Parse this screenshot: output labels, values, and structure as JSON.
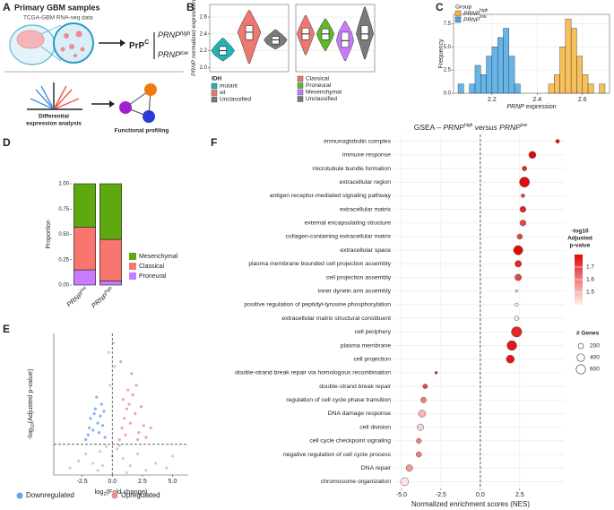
{
  "panel_labels": [
    "A",
    "B",
    "C",
    "D",
    "E",
    "F"
  ],
  "diagram": {
    "title": "Primary GBM samples",
    "subtitle": "TCGA-GBM RNA-seq data",
    "protein": "PrP",
    "protein_sup": "C",
    "gene": "PRNP",
    "high": "high",
    "low": "low",
    "step1": [
      "Differential",
      "expression analysis"
    ],
    "step2": "Functional profiling"
  },
  "chart_data": [
    {
      "type": "violin",
      "ylabel": [
        "PRNP",
        " normalized expression"
      ],
      "legend_title": "IDH",
      "categories": [
        "mutant",
        "wt",
        "Unclassified"
      ],
      "colors": [
        "#1fb5b5",
        "#f07670",
        "#7a7a7a"
      ],
      "min": [
        2.08,
        2.05,
        2.22
      ],
      "q1": [
        2.15,
        2.33,
        2.28
      ],
      "median": [
        2.2,
        2.42,
        2.33
      ],
      "q3": [
        2.25,
        2.5,
        2.37
      ],
      "max": [
        2.35,
        2.68,
        2.45
      ],
      "ylim": [
        1.95,
        2.75
      ],
      "yticks": [
        {
          "value": 2,
          "label": "2.0"
        },
        2.2,
        2.4,
        2.6
      ],
      "grid": true
    },
    {
      "type": "violin",
      "categories": [
        "Classical",
        "Proneural",
        "Mesenchymal",
        "Unclassified"
      ],
      "colors": [
        "#f07670",
        "#5fb82a",
        "#c77cff",
        "#7a7a7a"
      ],
      "min": [
        2.15,
        2.2,
        2.08,
        2.1
      ],
      "q1": [
        2.33,
        2.33,
        2.24,
        2.33
      ],
      "median": [
        2.4,
        2.4,
        2.32,
        2.4
      ],
      "q3": [
        2.47,
        2.46,
        2.42,
        2.5
      ],
      "max": [
        2.62,
        2.58,
        2.55,
        2.72
      ],
      "ylim": [
        1.95,
        2.75
      ],
      "grid": true
    },
    {
      "type": "histogram",
      "xlabel": [
        "PRNP",
        " expression"
      ],
      "ylabel": "Frequency",
      "legend_title": "Group",
      "bins": [
        2.05,
        2.075,
        2.1,
        2.125,
        2.15,
        2.175,
        2.2,
        2.225,
        2.25,
        2.275,
        2.3,
        2.325,
        2.35,
        2.375,
        2.4,
        2.425,
        2.45,
        2.475,
        2.5,
        2.525,
        2.55,
        2.575,
        2.6,
        2.625,
        2.65,
        2.675,
        2.7
      ],
      "series": [
        {
          "name": "PRNP",
          "name_sup": "high",
          "color": "#f7b53b",
          "values": [
            0,
            0,
            0,
            0,
            0,
            0,
            0,
            0,
            0,
            0,
            0,
            0,
            0,
            0,
            0,
            0,
            1,
            2,
            5,
            8,
            7,
            4,
            2,
            1,
            0,
            1
          ]
        },
        {
          "name": "PRNP",
          "name_sup": "low",
          "color": "#4aa8e0",
          "values": [
            1,
            0,
            1,
            3,
            2,
            4,
            5,
            6,
            7,
            4,
            1,
            0,
            0,
            0,
            0,
            0,
            0,
            0,
            0,
            0,
            0,
            0,
            0,
            0,
            0,
            0
          ]
        }
      ],
      "xlim": [
        2.03,
        2.72
      ],
      "xticks": [
        2.2,
        2.4,
        2.6
      ],
      "ylim": [
        0,
        8.5
      ],
      "yticks": [
        {
          "value": 0,
          "label": "0.0"
        },
        2.5,
        {
          "value": 5,
          "label": "5.0"
        },
        7.5
      ],
      "grid": true
    },
    {
      "type": "stacked_bar",
      "ylabel": "Proportion",
      "categories": [
        "PRNP",
        "PRNP"
      ],
      "category_sups": [
        "low",
        "high"
      ],
      "series": [
        {
          "name": "Mesenchymal",
          "color": "#5fa80f",
          "values": [
            0.43,
            0.55
          ]
        },
        {
          "name": "Classical",
          "color": "#f8766d",
          "values": [
            0.42,
            0.41
          ]
        },
        {
          "name": "Proneural",
          "color": "#c77cff",
          "values": [
            0.15,
            0.04
          ]
        }
      ],
      "ylim": [
        0,
        1
      ],
      "yticks": [
        {
          "value": 0,
          "label": "0.00"
        },
        {
          "value": 0.25,
          "label": "0.25"
        },
        {
          "value": 0.5,
          "label": "0.50"
        },
        {
          "value": 0.75,
          "label": "0.75"
        },
        {
          "value": 1,
          "label": "1.00"
        }
      ]
    },
    {
      "type": "volcano",
      "xlabel": [
        "log",
        "2",
        "(Fold change)"
      ],
      "ylabel": [
        "-log",
        "10",
        "(Adjusted p-value)"
      ],
      "series": [
        {
          "name": "Downregulated",
          "color": "#6c9ff0",
          "x": [
            -0.6,
            -0.8,
            -1.0,
            -1.2,
            -1.4,
            -1.6,
            -1.8,
            -2.0,
            -2.2,
            -0.9,
            -1.1,
            -1.5,
            -1.3,
            -0.7,
            -1.9
          ],
          "y": [
            1.6,
            2.1,
            2.5,
            2.2,
            2.8,
            1.9,
            2.4,
            1.7,
            1.5,
            3.0,
            1.8,
            2.6,
            3.3,
            2.7,
            2.0
          ]
        },
        {
          "name": "Upregulated",
          "color": "#f28b8b",
          "x": [
            0.6,
            0.8,
            1.0,
            1.2,
            1.4,
            1.5,
            1.7,
            1.9,
            2.0,
            2.2,
            2.4,
            2.6,
            1.1,
            1.6,
            0.9,
            2.8,
            3.2,
            1.3,
            0.7,
            2.1
          ],
          "y": [
            1.5,
            2.0,
            2.4,
            2.8,
            3.0,
            2.2,
            3.4,
            2.6,
            3.8,
            1.8,
            2.9,
            2.1,
            1.7,
            4.3,
            3.2,
            1.6,
            2.0,
            3.6,
            4.8,
            1.5
          ]
        },
        {
          "color": "#c4c4c4",
          "x": [
            -3.5,
            -2.8,
            -2.2,
            -1.6,
            -1.0,
            -0.5,
            0,
            0.4,
            0.9,
            1.5,
            2.1,
            2.8,
            3.6,
            4.5,
            -0.3,
            0.2,
            -1.2,
            1.2,
            0.6,
            -0.8,
            5.0,
            -0.2,
            0.1
          ],
          "y": [
            0.3,
            0.6,
            0.9,
            0.5,
            1.0,
            1.2,
            0.8,
            1.1,
            0.7,
            0.4,
            0.9,
            0.2,
            0.5,
            0.3,
            5.2,
            4.6,
            0.2,
            0.1,
            1.25,
            0.4,
            0.8,
            3.8,
            5.6
          ]
        }
      ],
      "xlim": [
        -4.85,
        6.3
      ],
      "xticks": [
        -2.5,
        {
          "value": 0,
          "label": "0.0"
        },
        2.5,
        {
          "value": 5,
          "label": "5.0"
        }
      ],
      "ylim": [
        0,
        6
      ],
      "hline": 1.3,
      "vline": 0
    },
    {
      "type": "dot",
      "title": [
        "GSEA – ",
        "PRNP",
        "high",
        " versus ",
        "PRNP",
        "low"
      ],
      "xlabel": "Normalized enrichment scores (NES)",
      "categories": [
        "immunoglobulin complex",
        "immune response",
        "microtubule bundle formation",
        "extracellular region",
        "antigen receptor-mediated signaling pathway",
        "extracellular matrix",
        "external encapsulating structure",
        "collagen-containing extracellular matrix",
        "extracellular space",
        "plasma membrane bounded cell projection assembly",
        "cell projection assembly",
        "inner dynein arm assembly",
        "positive regulation of peptidyl-tyrosine phosphorylation",
        "extracellular matrix structural constituent",
        "cell periphery",
        "plasma membrane",
        "cell projection",
        "double-strand break repair via homologous recombination",
        "double-strand break repair",
        "regulation of cell cycle phase transition",
        "DNA damage response",
        "cell division",
        "cell cycle checkpoint signaling",
        "negative regulation of cell cycle process",
        "DNA repair",
        "chromosome organization"
      ],
      "values": [
        4.9,
        3.3,
        2.8,
        2.8,
        2.7,
        2.7,
        2.7,
        2.5,
        2.4,
        2.4,
        2.4,
        2.3,
        2.3,
        2.3,
        2.3,
        2.0,
        1.9,
        -2.8,
        -3.5,
        -3.6,
        -3.7,
        -3.8,
        -3.9,
        -3.9,
        -4.5,
        -4.8
      ],
      "color_values": [
        1.85,
        1.8,
        1.75,
        1.8,
        1.7,
        1.75,
        1.7,
        1.7,
        1.8,
        1.75,
        1.7,
        1.45,
        1.4,
        1.42,
        1.75,
        1.78,
        1.78,
        1.75,
        1.7,
        1.6,
        1.5,
        1.45,
        1.6,
        1.6,
        1.55,
        1.42
      ],
      "sizes": [
        100,
        350,
        150,
        700,
        100,
        250,
        250,
        200,
        600,
        300,
        300,
        50,
        80,
        150,
        750,
        650,
        450,
        50,
        150,
        220,
        350,
        300,
        180,
        200,
        300,
        450
      ],
      "xlim": [
        -5.45,
        5.35
      ],
      "xticks": [
        {
          "value": -5,
          "label": "-5.0"
        },
        -2.5,
        {
          "value": 0,
          "label": "0.0"
        },
        2.5
      ],
      "vline": 0,
      "grid": true,
      "color_title": [
        "-log10",
        "Adjusted",
        "p-value"
      ],
      "color_range": [
        "#fff1ec",
        "#e00a0a"
      ],
      "colorlim": [
        1.4,
        1.8
      ],
      "colorbar_ticks": [
        1.5,
        1.6,
        1.7
      ],
      "size_title": "# Genes",
      "size_lim": [
        0,
        800
      ],
      "size_ticks": [
        200,
        400,
        600
      ]
    }
  ]
}
